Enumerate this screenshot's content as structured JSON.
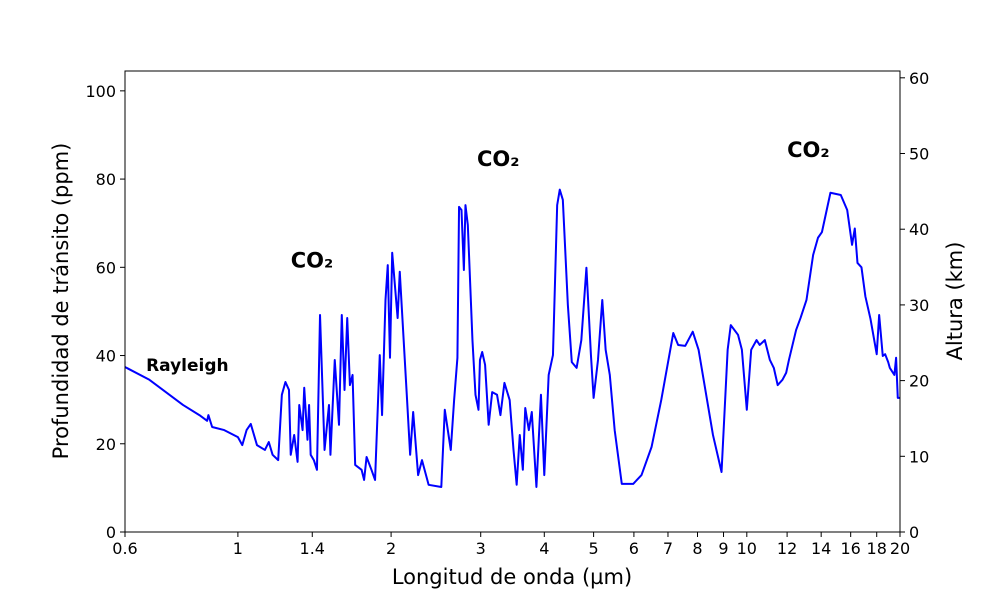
{
  "chart_data": {
    "type": "line",
    "xlabel": "Longitud de onda (µm)",
    "ylabel": "Profundidad de tránsito (ppm)",
    "y2label": "Altura (km)",
    "xscale": "log",
    "xlim": [
      0.6,
      20
    ],
    "xticks": [
      0.6,
      1,
      1.4,
      2,
      3,
      4,
      5,
      6,
      7,
      8,
      9,
      10,
      12,
      14,
      16,
      18,
      20
    ],
    "ylim": [
      0,
      104.5
    ],
    "yticks": [
      0,
      20,
      40,
      60,
      80,
      100
    ],
    "y2lim": [
      0,
      60.9
    ],
    "y2ticks": [
      0,
      10,
      20,
      30,
      40,
      50,
      60
    ],
    "annotations": [
      {
        "text": "Rayleigh",
        "x": 0.66,
        "y": 36.5
      },
      {
        "text": "CO₂",
        "x": 1.27,
        "y": 60
      },
      {
        "text": "CO₂",
        "x": 2.95,
        "y": 83
      },
      {
        "text": "CO₂",
        "x": 12.0,
        "y": 85
      }
    ],
    "series": [
      {
        "color": "#0000ff",
        "x": [
          0.6,
          0.67,
          0.78,
          0.84,
          0.87,
          0.875,
          0.89,
          0.94,
          1.0,
          1.02,
          1.04,
          1.06,
          1.09,
          1.13,
          1.15,
          1.17,
          1.2,
          1.22,
          1.24,
          1.26,
          1.27,
          1.29,
          1.31,
          1.32,
          1.34,
          1.35,
          1.37,
          1.38,
          1.39,
          1.41,
          1.43,
          1.45,
          1.48,
          1.51,
          1.52,
          1.55,
          1.58,
          1.6,
          1.62,
          1.64,
          1.66,
          1.68,
          1.7,
          1.75,
          1.77,
          1.79,
          1.83,
          1.86,
          1.9,
          1.92,
          1.95,
          1.97,
          1.99,
          2.01,
          2.06,
          2.08,
          2.15,
          2.18,
          2.21,
          2.26,
          2.3,
          2.37,
          2.51,
          2.55,
          2.62,
          2.66,
          2.7,
          2.72,
          2.75,
          2.78,
          2.8,
          2.83,
          2.89,
          2.93,
          2.97,
          2.99,
          3.02,
          3.06,
          3.11,
          3.16,
          3.23,
          3.28,
          3.34,
          3.42,
          3.48,
          3.53,
          3.58,
          3.63,
          3.67,
          3.73,
          3.78,
          3.86,
          3.94,
          4.0,
          4.08,
          4.16,
          4.24,
          4.29,
          4.35,
          4.45,
          4.53,
          4.63,
          4.73,
          4.84,
          4.94,
          5.0,
          5.1,
          5.2,
          5.28,
          5.38,
          5.5,
          5.68,
          5.98,
          6.21,
          6.5,
          6.79,
          7.17,
          7.33,
          7.57,
          7.83,
          8.04,
          8.58,
          8.92,
          9.17,
          9.3,
          9.61,
          9.78,
          10.0,
          10.2,
          10.45,
          10.6,
          10.85,
          11.1,
          11.3,
          11.5,
          11.75,
          11.95,
          12.1,
          12.5,
          12.75,
          13.1,
          13.5,
          13.8,
          14.05,
          14.6,
          15.3,
          15.75,
          16.1,
          16.3,
          16.5,
          16.8,
          17.1,
          17.5,
          18.0,
          18.2,
          18.5,
          18.7,
          18.96,
          19.1,
          19.5,
          19.65,
          19.8,
          20
        ],
        "values": [
          37.4,
          34.5,
          28.8,
          26.5,
          25.2,
          26.5,
          23.8,
          23.1,
          21.5,
          19.7,
          23.1,
          24.5,
          19.7,
          18.6,
          20.4,
          17.5,
          16.3,
          31.1,
          34.0,
          32.2,
          17.5,
          22.0,
          15.9,
          28.8,
          23.1,
          32.7,
          20.9,
          28.8,
          17.5,
          16.3,
          14.1,
          49.2,
          18.6,
          28.8,
          17.5,
          39.0,
          24.3,
          49.2,
          32.2,
          48.5,
          33.3,
          35.6,
          15.2,
          14.1,
          11.8,
          17.0,
          14.1,
          11.8,
          40.1,
          26.5,
          52.6,
          60.5,
          39.5,
          63.3,
          48.5,
          59.0,
          29.9,
          17.5,
          27.2,
          12.9,
          16.3,
          10.7,
          10.2,
          27.7,
          18.6,
          29.9,
          39.5,
          73.7,
          73.0,
          59.4,
          74.1,
          69.6,
          43.5,
          31.1,
          27.7,
          39.0,
          40.8,
          37.9,
          24.3,
          31.7,
          31.1,
          26.5,
          33.8,
          29.9,
          18.6,
          10.7,
          22.0,
          14.1,
          28.1,
          23.1,
          27.2,
          10.2,
          31.1,
          12.9,
          35.6,
          40.1,
          74.1,
          77.6,
          75.3,
          51.5,
          38.5,
          37.2,
          43.5,
          59.9,
          40.1,
          30.4,
          39.0,
          52.6,
          41.3,
          35.6,
          23.1,
          10.9,
          10.9,
          12.9,
          19.3,
          29.9,
          45.1,
          42.4,
          42.2,
          45.4,
          41.3,
          22.0,
          13.6,
          41.3,
          46.9,
          44.7,
          41.3,
          27.7,
          41.3,
          43.5,
          42.4,
          43.5,
          39.0,
          37.2,
          33.3,
          34.5,
          36.1,
          39.0,
          45.8,
          48.5,
          52.6,
          62.8,
          66.7,
          68.0,
          76.9,
          76.4,
          73.0,
          65.1,
          68.8,
          61.0,
          60.0,
          53.4,
          48.3,
          40.3,
          49.2,
          39.9,
          40.3,
          38.5,
          37.2,
          35.6,
          39.5,
          30.4,
          30.4
        ]
      }
    ]
  }
}
